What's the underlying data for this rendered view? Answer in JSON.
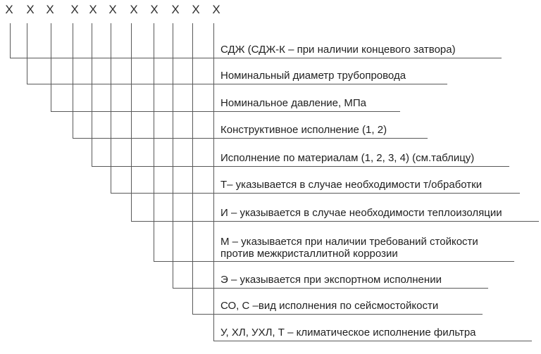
{
  "diagram": {
    "title": "designation-structure-scheme",
    "code": {
      "mark_char": "Х",
      "positions": 11
    },
    "rows": [
      {
        "label": "СДЖ (СДЖ-К – при наличии концевого затвора)"
      },
      {
        "label": "Номинальный диаметр трубопровода"
      },
      {
        "label": "Номинальное давление, МПа"
      },
      {
        "label": "Конструктивное исполнение (1, 2)"
      },
      {
        "label": "Исполнение по материалам (1, 2, 3, 4) (см.таблицу)"
      },
      {
        "label": "Т– указывается в случае необходимости т/обработки"
      },
      {
        "label": "И – указывается в случае необходимости теплоизоляции"
      },
      {
        "label": "М – указывается при наличии требований стойкости",
        "label_line2": "против межкристаллитной коррозии"
      },
      {
        "label": "Э – указывается при экспортном исполнении"
      },
      {
        "label": "СО, С –вид исполнения по сейсмостойкости"
      },
      {
        "label": "У, ХЛ, УХЛ, Т – климатическое исполнение фильтра"
      }
    ],
    "colors": {
      "background": "#ffffff",
      "line": "#595959",
      "text": "#1f1f1f"
    }
  }
}
